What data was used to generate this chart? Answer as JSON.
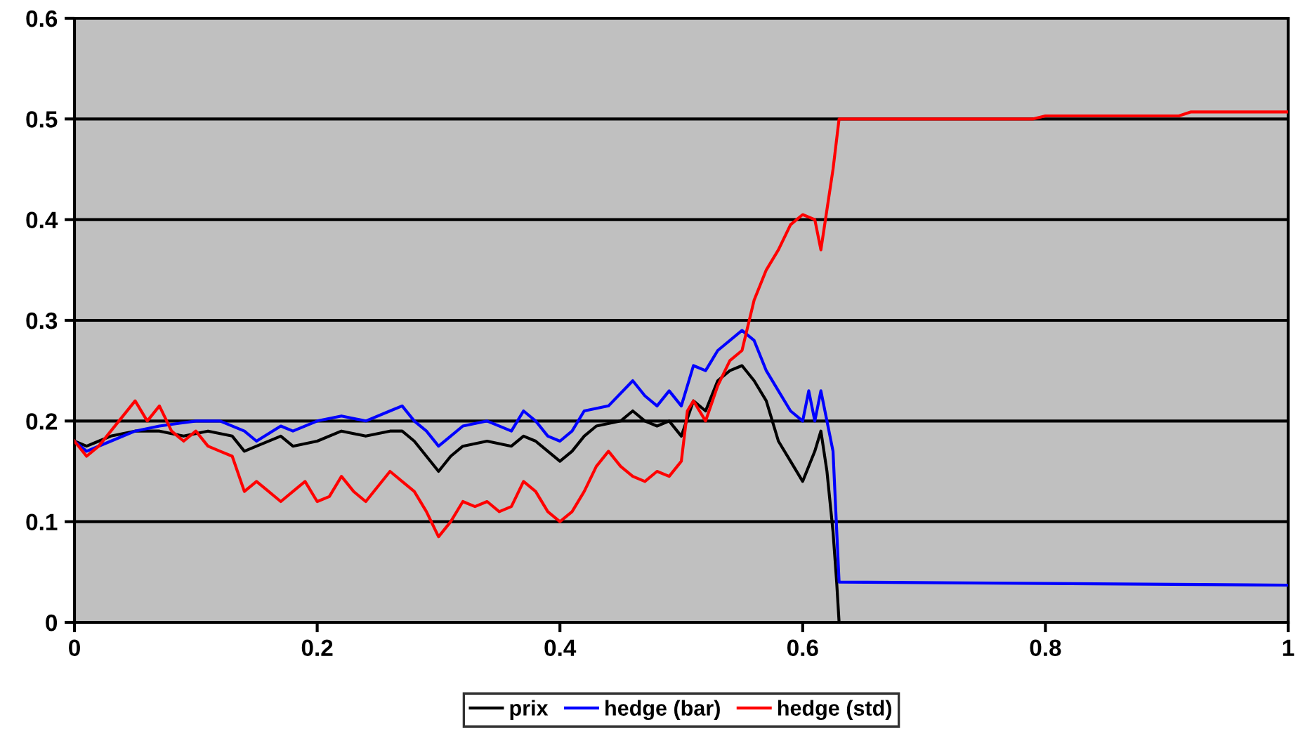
{
  "chart_data": {
    "type": "line",
    "xlim": [
      0,
      1
    ],
    "ylim": [
      0,
      0.6
    ],
    "xticks": [
      0,
      0.2,
      0.4,
      0.6,
      0.8,
      1
    ],
    "yticks": [
      0,
      0.1,
      0.2,
      0.3,
      0.4,
      0.5,
      0.6
    ],
    "grid": "y",
    "legend": "bottom",
    "marker": "none",
    "line_style": "solid",
    "series": [
      {
        "name": "prix",
        "color": "#000000",
        "x": [
          0,
          0.01,
          0.02,
          0.03,
          0.05,
          0.07,
          0.09,
          0.11,
          0.13,
          0.14,
          0.15,
          0.17,
          0.18,
          0.2,
          0.22,
          0.24,
          0.26,
          0.27,
          0.28,
          0.29,
          0.3,
          0.31,
          0.32,
          0.34,
          0.36,
          0.37,
          0.38,
          0.39,
          0.4,
          0.41,
          0.42,
          0.43,
          0.45,
          0.46,
          0.47,
          0.48,
          0.49,
          0.5,
          0.51,
          0.52,
          0.53,
          0.54,
          0.55,
          0.56,
          0.57,
          0.58,
          0.59,
          0.6,
          0.61,
          0.615,
          0.62,
          0.625,
          0.628,
          0.63,
          1
        ],
        "values": [
          0.18,
          0.175,
          0.18,
          0.185,
          0.19,
          0.19,
          0.185,
          0.19,
          0.185,
          0.17,
          0.175,
          0.185,
          0.175,
          0.18,
          0.19,
          0.185,
          0.19,
          0.19,
          0.18,
          0.165,
          0.15,
          0.165,
          0.175,
          0.18,
          0.175,
          0.185,
          0.18,
          0.17,
          0.16,
          0.17,
          0.185,
          0.195,
          0.2,
          0.21,
          0.2,
          0.195,
          0.2,
          0.185,
          0.22,
          0.21,
          0.24,
          0.25,
          0.255,
          0.24,
          0.22,
          0.18,
          0.16,
          0.14,
          0.17,
          0.19,
          0.15,
          0.09,
          0.04,
          0,
          0
        ]
      },
      {
        "name": "hedge (bar)",
        "color": "#0000ff",
        "x": [
          0,
          0.01,
          0.03,
          0.05,
          0.07,
          0.1,
          0.12,
          0.14,
          0.15,
          0.17,
          0.18,
          0.2,
          0.22,
          0.24,
          0.26,
          0.27,
          0.28,
          0.29,
          0.3,
          0.31,
          0.32,
          0.34,
          0.36,
          0.37,
          0.38,
          0.39,
          0.4,
          0.41,
          0.42,
          0.44,
          0.46,
          0.47,
          0.48,
          0.49,
          0.5,
          0.51,
          0.52,
          0.53,
          0.55,
          0.56,
          0.57,
          0.58,
          0.59,
          0.6,
          0.605,
          0.61,
          0.615,
          0.62,
          0.625,
          0.63,
          1
        ],
        "values": [
          0.18,
          0.17,
          0.18,
          0.19,
          0.195,
          0.2,
          0.2,
          0.19,
          0.18,
          0.195,
          0.19,
          0.2,
          0.205,
          0.2,
          0.21,
          0.215,
          0.2,
          0.19,
          0.175,
          0.185,
          0.195,
          0.2,
          0.19,
          0.21,
          0.2,
          0.185,
          0.18,
          0.19,
          0.21,
          0.215,
          0.24,
          0.225,
          0.215,
          0.23,
          0.215,
          0.255,
          0.25,
          0.27,
          0.29,
          0.28,
          0.25,
          0.23,
          0.21,
          0.2,
          0.23,
          0.2,
          0.23,
          0.2,
          0.17,
          0.04,
          0.037
        ]
      },
      {
        "name": "hedge (std)",
        "color": "#ff0000",
        "x": [
          0,
          0.01,
          0.02,
          0.03,
          0.04,
          0.05,
          0.06,
          0.07,
          0.08,
          0.09,
          0.1,
          0.11,
          0.12,
          0.13,
          0.14,
          0.15,
          0.16,
          0.17,
          0.18,
          0.19,
          0.2,
          0.21,
          0.22,
          0.23,
          0.24,
          0.25,
          0.26,
          0.27,
          0.28,
          0.29,
          0.3,
          0.31,
          0.32,
          0.33,
          0.34,
          0.35,
          0.36,
          0.37,
          0.38,
          0.39,
          0.4,
          0.41,
          0.42,
          0.43,
          0.44,
          0.45,
          0.46,
          0.47,
          0.48,
          0.49,
          0.5,
          0.505,
          0.51,
          0.52,
          0.53,
          0.54,
          0.55,
          0.56,
          0.57,
          0.58,
          0.59,
          0.6,
          0.61,
          0.615,
          0.62,
          0.625,
          0.63,
          0.79,
          0.8,
          0.91,
          0.92,
          1
        ],
        "values": [
          0.18,
          0.165,
          0.175,
          0.19,
          0.205,
          0.22,
          0.2,
          0.215,
          0.19,
          0.18,
          0.19,
          0.175,
          0.17,
          0.165,
          0.13,
          0.14,
          0.13,
          0.12,
          0.13,
          0.14,
          0.12,
          0.125,
          0.145,
          0.13,
          0.12,
          0.135,
          0.15,
          0.14,
          0.13,
          0.11,
          0.085,
          0.1,
          0.12,
          0.115,
          0.12,
          0.11,
          0.115,
          0.14,
          0.13,
          0.11,
          0.1,
          0.11,
          0.13,
          0.155,
          0.17,
          0.155,
          0.145,
          0.14,
          0.15,
          0.145,
          0.16,
          0.21,
          0.22,
          0.2,
          0.235,
          0.26,
          0.27,
          0.32,
          0.35,
          0.37,
          0.395,
          0.405,
          0.4,
          0.37,
          0.41,
          0.45,
          0.5,
          0.5,
          0.503,
          0.503,
          0.507,
          0.507
        ]
      }
    ]
  }
}
